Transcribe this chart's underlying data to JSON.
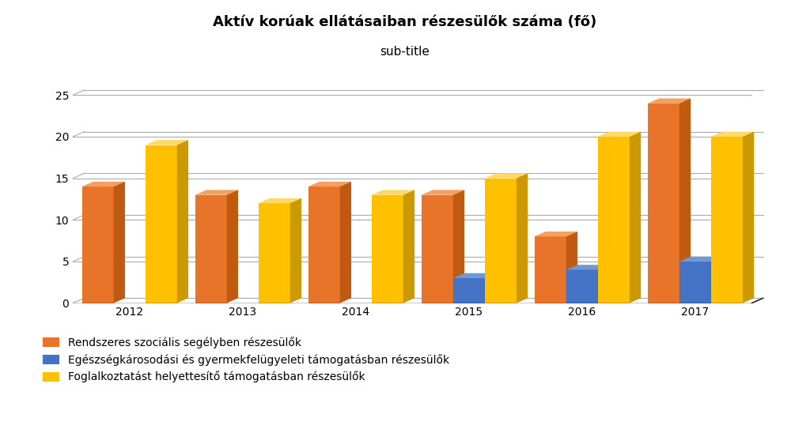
{
  "title": "Aktív korúak ellátásaiban részesülők száma (fő)",
  "subtitle": "sub-title",
  "years": [
    2012,
    2013,
    2014,
    2015,
    2016,
    2017
  ],
  "series": [
    {
      "name": "Rendszeres szociális segélyben részesülők",
      "color_front": "#E8742A",
      "color_top": "#F5A060",
      "color_side": "#C05A10",
      "values": [
        14,
        13,
        14,
        13,
        8,
        24
      ]
    },
    {
      "name": "Egészségkárosodási és gyermekfelügyeleti támogatásban részesülők",
      "color_front": "#4472C4",
      "color_top": "#7099D4",
      "color_side": "#2255A0",
      "values": [
        0,
        0,
        0,
        3,
        4,
        5
      ]
    },
    {
      "name": "Foglalkoztatást helyettesítő támogatásban részesülők",
      "color_front": "#FFC000",
      "color_top": "#FFD966",
      "color_side": "#CC9900",
      "values": [
        19,
        12,
        13,
        15,
        20,
        20
      ]
    }
  ],
  "ylim": [
    0,
    27
  ],
  "yticks": [
    0,
    5,
    10,
    15,
    20,
    25
  ],
  "background_color": "#FFFFFF",
  "title_fontsize": 13,
  "subtitle_fontsize": 11,
  "legend_fontsize": 10,
  "tick_fontsize": 10,
  "grid_color": "#888888",
  "grid_alpha": 0.7,
  "grid_linewidth": 0.8
}
